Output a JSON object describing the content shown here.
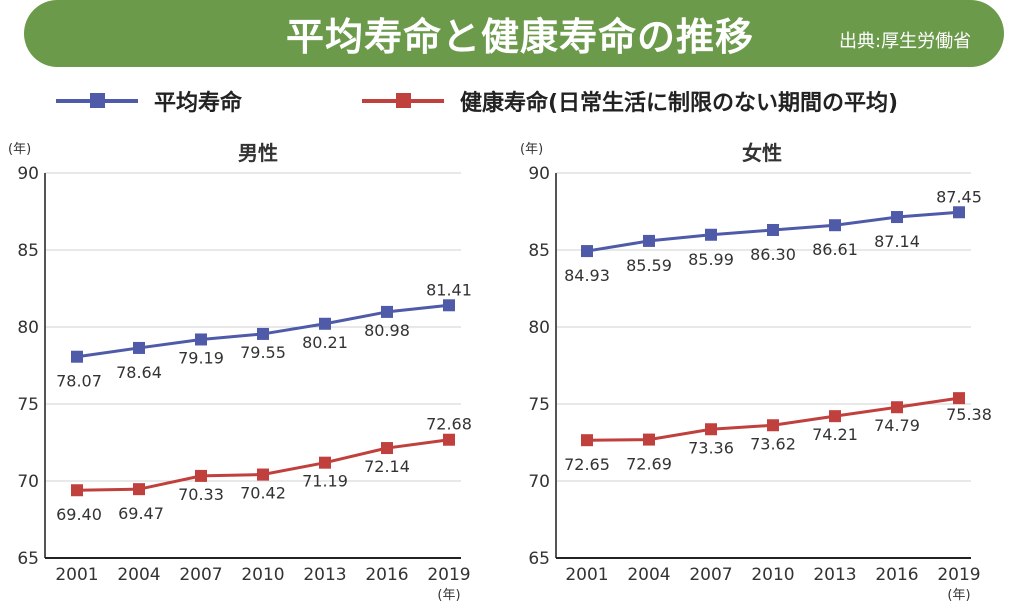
{
  "header": {
    "title": "平均寿命と健康寿命の推移",
    "source": "出典:厚生労働省"
  },
  "colors": {
    "banner": "#6b9a4b",
    "life_expectancy": "#4f5aa8",
    "healthy_life": "#c0403d"
  },
  "legend": [
    {
      "label": "平均寿命",
      "series": "life_expectancy"
    },
    {
      "label": "健康寿命(日常生活に制限のない期間の平均)",
      "series": "healthy_life"
    }
  ],
  "chart_data": [
    {
      "type": "line",
      "title": "男性",
      "ylabel": "(年)",
      "xlabel": "(年)",
      "categories": [
        "2001",
        "2004",
        "2007",
        "2010",
        "2013",
        "2016",
        "2019"
      ],
      "ylim": [
        65,
        90
      ],
      "yticks": [
        65,
        70,
        75,
        80,
        85,
        90
      ],
      "grid": true,
      "series": [
        {
          "name": "平均寿命",
          "key": "life_expectancy",
          "values": [
            78.07,
            78.64,
            79.19,
            79.55,
            80.21,
            80.98,
            81.41
          ],
          "label_text": [
            "78.07",
            "78.64",
            "79.19",
            "79.55",
            "80.21",
            "80.98",
            "81.41"
          ]
        },
        {
          "name": "健康寿命",
          "key": "healthy_life",
          "values": [
            69.4,
            69.47,
            70.33,
            70.42,
            71.19,
            72.14,
            72.68
          ],
          "label_text": [
            "69.40",
            "69.47",
            "70.33",
            "70.42",
            "71.19",
            "72.14",
            "72.68"
          ]
        }
      ]
    },
    {
      "type": "line",
      "title": "女性",
      "ylabel": "(年)",
      "xlabel": "(年)",
      "categories": [
        "2001",
        "2004",
        "2007",
        "2010",
        "2013",
        "2016",
        "2019"
      ],
      "ylim": [
        65,
        90
      ],
      "yticks": [
        65,
        70,
        75,
        80,
        85,
        90
      ],
      "grid": true,
      "series": [
        {
          "name": "平均寿命",
          "key": "life_expectancy",
          "values": [
            84.93,
            85.59,
            85.99,
            86.3,
            86.61,
            87.14,
            87.45
          ],
          "label_text": [
            "84.93",
            "85.59",
            "85.99",
            "86.30",
            "86.61",
            "87.14",
            "87.45"
          ]
        },
        {
          "name": "健康寿命",
          "key": "healthy_life",
          "values": [
            72.65,
            72.69,
            73.36,
            73.62,
            74.21,
            74.79,
            75.38
          ],
          "label_text": [
            "72.65",
            "72.69",
            "73.36",
            "73.62",
            "74.21",
            "74.79",
            "75.38"
          ]
        }
      ]
    }
  ]
}
